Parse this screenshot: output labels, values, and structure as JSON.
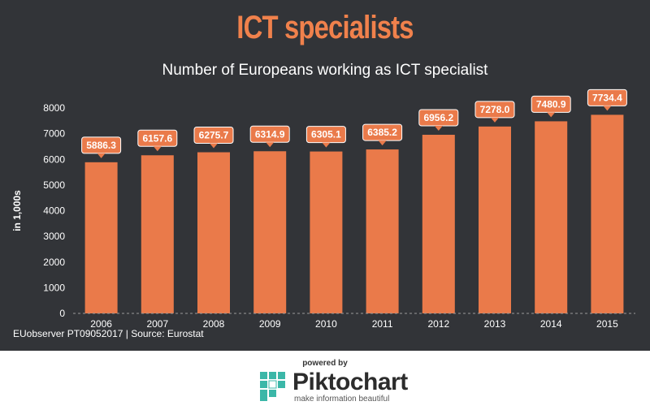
{
  "header": {
    "title": "ICT specialists",
    "subtitle": "Number of Europeans working as ICT specialist"
  },
  "source_text": "EUobserver PT09052017 | Source: Eurostat",
  "footer": {
    "powered_by": "powered by",
    "brand": "Piktochart",
    "tagline": "make information beautiful"
  },
  "colors": {
    "bar": "#ea7a4a",
    "background": "#323438",
    "title": "#f0814c",
    "label_box": "#ea7a4a",
    "text": "#ffffff",
    "logo": "#3bb7a8"
  },
  "chart_data": {
    "type": "bar",
    "title": "Number of Europeans working as ICT specialist",
    "xlabel": "",
    "ylabel": "in 1,000s",
    "categories": [
      "2006",
      "2007",
      "2008",
      "2009",
      "2010",
      "2011",
      "2012",
      "2013",
      "2014",
      "2015"
    ],
    "values": [
      5886.3,
      6157.6,
      6275.7,
      6314.9,
      6305.1,
      6385.2,
      6956.2,
      7278.0,
      7480.9,
      7734.4
    ],
    "value_labels": [
      "5886.3",
      "6157.6",
      "6275.7",
      "6314.9",
      "6305.1",
      "6385.2",
      "6956.2",
      "7278.0",
      "7480.9",
      "7734.4"
    ],
    "ylim": [
      0,
      8000
    ],
    "yticks": [
      0,
      1000,
      2000,
      3000,
      4000,
      5000,
      6000,
      7000,
      8000
    ],
    "grid": false,
    "legend": "none"
  }
}
